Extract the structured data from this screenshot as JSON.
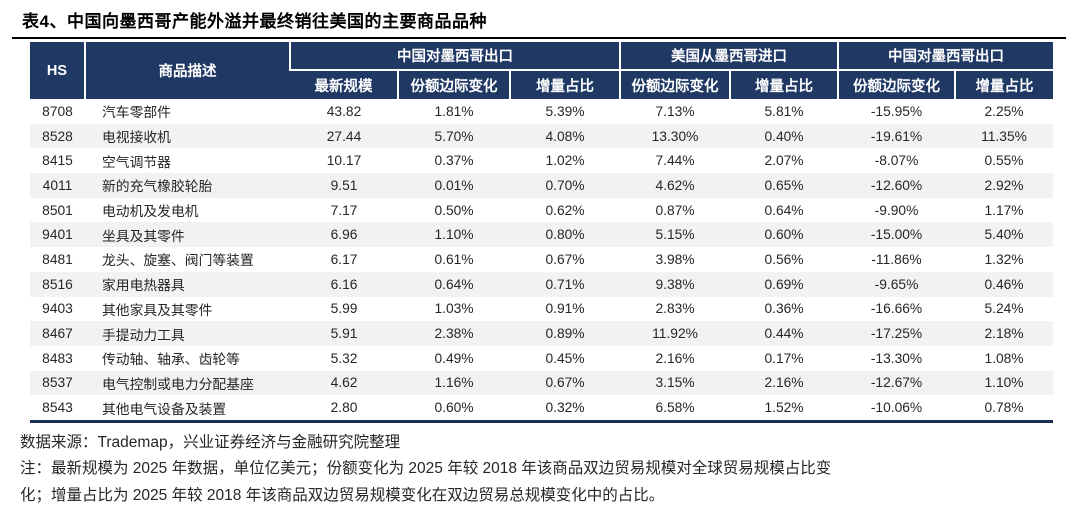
{
  "title": "表4、中国向墨西哥产能外溢并最终销往美国的主要商品品种",
  "table": {
    "hs_header": "HS",
    "desc_header": "商品描述",
    "groups": [
      {
        "label": "中国对墨西哥出口",
        "cols": [
          "最新规模",
          "份额边际变化",
          "增量占比"
        ]
      },
      {
        "label": "美国从墨西哥进口",
        "cols": [
          "份额边际变化",
          "增量占比"
        ]
      },
      {
        "label": "中国对墨西哥出口",
        "cols": [
          "份额边际变化",
          "增量占比"
        ]
      }
    ],
    "rows": [
      {
        "hs": "8708",
        "desc": "汽车零部件",
        "values": [
          "43.82",
          "1.81%",
          "5.39%",
          "7.13%",
          "5.81%",
          "-15.95%",
          "2.25%"
        ]
      },
      {
        "hs": "8528",
        "desc": "电视接收机",
        "values": [
          "27.44",
          "5.70%",
          "4.08%",
          "13.30%",
          "0.40%",
          "-19.61%",
          "11.35%"
        ]
      },
      {
        "hs": "8415",
        "desc": "空气调节器",
        "values": [
          "10.17",
          "0.37%",
          "1.02%",
          "7.44%",
          "2.07%",
          "-8.07%",
          "0.55%"
        ]
      },
      {
        "hs": "4011",
        "desc": "新的充气橡胶轮胎",
        "values": [
          "9.51",
          "0.01%",
          "0.70%",
          "4.62%",
          "0.65%",
          "-12.60%",
          "2.92%"
        ]
      },
      {
        "hs": "8501",
        "desc": "电动机及发电机",
        "values": [
          "7.17",
          "0.50%",
          "0.62%",
          "0.87%",
          "0.64%",
          "-9.90%",
          "1.17%"
        ]
      },
      {
        "hs": "9401",
        "desc": "坐具及其零件",
        "values": [
          "6.96",
          "1.10%",
          "0.80%",
          "5.15%",
          "0.60%",
          "-15.00%",
          "5.40%"
        ]
      },
      {
        "hs": "8481",
        "desc": "龙头、旋塞、阀门等装置",
        "values": [
          "6.17",
          "0.61%",
          "0.67%",
          "3.98%",
          "0.56%",
          "-11.86%",
          "1.32%"
        ]
      },
      {
        "hs": "8516",
        "desc": "家用电热器具",
        "values": [
          "6.16",
          "0.64%",
          "0.71%",
          "9.38%",
          "0.69%",
          "-9.65%",
          "0.46%"
        ]
      },
      {
        "hs": "9403",
        "desc": "其他家具及其零件",
        "values": [
          "5.99",
          "1.03%",
          "0.91%",
          "2.83%",
          "0.36%",
          "-16.66%",
          "5.24%"
        ]
      },
      {
        "hs": "8467",
        "desc": "手提动力工具",
        "values": [
          "5.91",
          "2.38%",
          "0.89%",
          "11.92%",
          "0.44%",
          "-17.25%",
          "2.18%"
        ]
      },
      {
        "hs": "8483",
        "desc": "传动轴、轴承、齿轮等",
        "values": [
          "5.32",
          "0.49%",
          "0.45%",
          "2.16%",
          "0.17%",
          "-13.30%",
          "1.08%"
        ]
      },
      {
        "hs": "8537",
        "desc": "电气控制或电力分配基座",
        "values": [
          "4.62",
          "1.16%",
          "0.67%",
          "3.15%",
          "2.16%",
          "-12.67%",
          "1.10%"
        ]
      },
      {
        "hs": "8543",
        "desc": "其他电气设备及装置",
        "values": [
          "2.80",
          "0.60%",
          "0.32%",
          "6.58%",
          "1.52%",
          "-10.06%",
          "0.78%"
        ]
      }
    ]
  },
  "footer": {
    "source": "数据来源：Trademap，兴业证券经济与金融研究院整理",
    "note_line1": "注：最新规模为 2025 年数据，单位亿美元；份额变化为 2025 年较 2018 年该商品双边贸易规模对全球贸易规模占比变",
    "note_line2": "化；增量占比为 2025 年较 2018 年该商品双边贸易规模变化在双边贸易总规模变化中的占比。"
  },
  "colors": {
    "header_bg": "#1f3864",
    "stripe": "#f2f2f2",
    "text": "#262626",
    "rule": "#000000"
  }
}
